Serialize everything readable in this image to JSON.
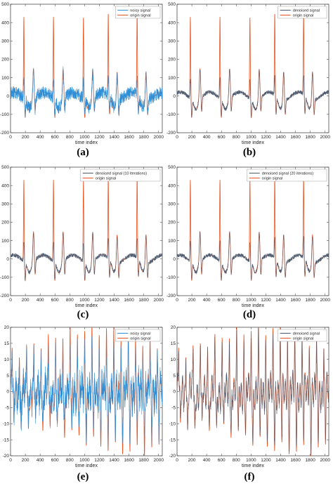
{
  "colors": {
    "noisy": "#2f8fd6",
    "origin": "#e8521f",
    "denoised": "#4a5a70",
    "axis": "#333333",
    "plot_bg": "#ffffff"
  },
  "chart_data": [
    {
      "type": "line",
      "signal": "ecg",
      "caption": "(a)",
      "xlabel": "time index",
      "xlim": [
        0,
        2050
      ],
      "ylim": [
        -200,
        500
      ],
      "xticks": [
        "0",
        "200",
        "400",
        "600",
        "800",
        "1000",
        "1200",
        "1400",
        "1600",
        "1800",
        "2000"
      ],
      "yticks": [
        "-200",
        "-100",
        "0",
        "100",
        "200",
        "300",
        "400",
        "500"
      ],
      "legend_position": "top-right",
      "series": [
        {
          "name": "noisy signal",
          "role": "noisy"
        },
        {
          "name": "origin signal",
          "role": "origin"
        }
      ],
      "spike_x": [
        180,
        580,
        985,
        1320,
        1710
      ],
      "spike_peak": 445,
      "wave_x": [
        310,
        710,
        1110,
        1440,
        1830
      ],
      "wave_peak": 165
    },
    {
      "type": "line",
      "signal": "ecg",
      "caption": "(b)",
      "xlabel": "time index",
      "xlim": [
        0,
        2050
      ],
      "ylim": [
        -200,
        500
      ],
      "xticks": [
        "0",
        "200",
        "400",
        "600",
        "800",
        "1000",
        "1200",
        "1400",
        "1600",
        "1800",
        "2000"
      ],
      "yticks": [
        "-200",
        "-100",
        "0",
        "100",
        "200",
        "300",
        "400",
        "500"
      ],
      "legend_position": "top-right",
      "series": [
        {
          "name": "denoised signal",
          "role": "denoised"
        },
        {
          "name": "origin signal",
          "role": "origin"
        }
      ],
      "spike_x": [
        180,
        580,
        985,
        1320,
        1710
      ],
      "spike_peak": 445,
      "wave_x": [
        310,
        710,
        1110,
        1440,
        1830
      ],
      "wave_peak": 165
    },
    {
      "type": "line",
      "signal": "ecg",
      "caption": "(c)",
      "xlabel": "time index",
      "xlim": [
        0,
        2050
      ],
      "ylim": [
        -200,
        500
      ],
      "xticks": [
        "0",
        "200",
        "400",
        "600",
        "800",
        "1000",
        "1200",
        "1400",
        "1600",
        "1800",
        "2000"
      ],
      "yticks": [
        "-200",
        "-100",
        "0",
        "100",
        "200",
        "300",
        "400",
        "500"
      ],
      "legend_position": "top-right",
      "series": [
        {
          "name": "denoised signal (10 iterations)",
          "role": "denoised"
        },
        {
          "name": "origin signal",
          "role": "origin"
        }
      ],
      "spike_x": [
        180,
        580,
        985,
        1320,
        1710
      ],
      "spike_peak": 445,
      "wave_x": [
        310,
        710,
        1110,
        1440,
        1830
      ],
      "wave_peak": 165
    },
    {
      "type": "line",
      "signal": "ecg",
      "caption": "(d)",
      "xlabel": "time index",
      "xlim": [
        0,
        2050
      ],
      "ylim": [
        -200,
        500
      ],
      "xticks": [
        "0",
        "200",
        "400",
        "600",
        "800",
        "1000",
        "1200",
        "1400",
        "1600",
        "1800",
        "2000"
      ],
      "yticks": [
        "-200",
        "-100",
        "0",
        "100",
        "200",
        "300",
        "400",
        "500"
      ],
      "legend_position": "top-right",
      "series": [
        {
          "name": "denoised signal (20 iterations)",
          "role": "denoised"
        },
        {
          "name": "origin signal",
          "role": "origin"
        }
      ],
      "spike_x": [
        180,
        580,
        985,
        1320,
        1710
      ],
      "spike_peak": 445,
      "wave_x": [
        310,
        710,
        1110,
        1440,
        1830
      ],
      "wave_peak": 165
    },
    {
      "type": "line",
      "signal": "osc",
      "caption": "(e)",
      "xlabel": "time index",
      "xlim": [
        0,
        2050
      ],
      "ylim": [
        -20,
        20
      ],
      "xticks": [
        "0",
        "200",
        "400",
        "600",
        "800",
        "1000",
        "1200",
        "1400",
        "1600",
        "1800",
        "2000"
      ],
      "yticks": [
        "-20",
        "-15",
        "-10",
        "-5",
        "0",
        "5",
        "10",
        "15",
        "20"
      ],
      "legend_position": "top-right",
      "series": [
        {
          "name": "noisy signal",
          "role": "noisy"
        },
        {
          "name": "origin signal",
          "role": "origin"
        }
      ],
      "peak": 16,
      "trough": -15
    },
    {
      "type": "line",
      "signal": "osc",
      "caption": "(f)",
      "xlabel": "time index",
      "xlim": [
        0,
        2050
      ],
      "ylim": [
        -20,
        20
      ],
      "xticks": [
        "0",
        "200",
        "400",
        "600",
        "800",
        "1000",
        "1200",
        "1400",
        "1600",
        "1800",
        "2000"
      ],
      "yticks": [
        "-20",
        "-15",
        "-10",
        "-5",
        "0",
        "5",
        "10",
        "15",
        "20"
      ],
      "legend_position": "top-right",
      "series": [
        {
          "name": "denoised signal",
          "role": "denoised"
        },
        {
          "name": "origin signal",
          "role": "origin"
        }
      ],
      "peak": 16,
      "trough": -15
    }
  ]
}
